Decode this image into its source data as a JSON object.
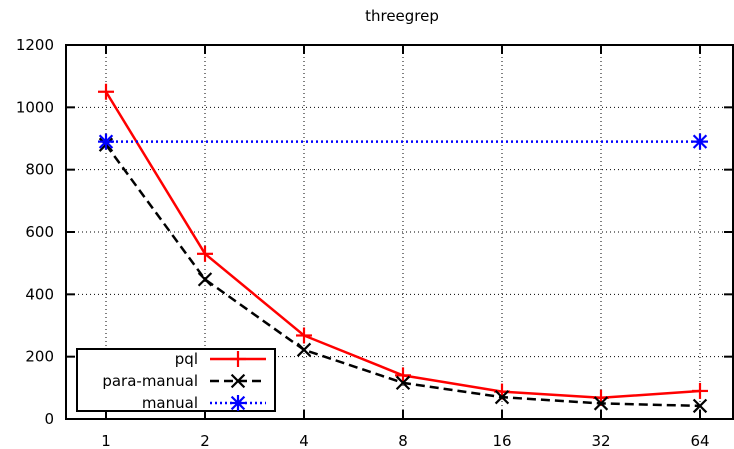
{
  "chart_data": {
    "type": "line",
    "title": "threegrep",
    "xlabel": "",
    "ylabel": "",
    "categories": [
      "1",
      "2",
      "4",
      "8",
      "16",
      "32",
      "64"
    ],
    "ylim": [
      0,
      1200
    ],
    "yticks": [
      0,
      200,
      400,
      600,
      800,
      1000,
      1200
    ],
    "grid": true,
    "legend_position": "bottom-left",
    "series": [
      {
        "name": "pql",
        "color": "#ff0000",
        "dash": "solid",
        "marker": "plus",
        "values": [
          1050,
          530,
          268,
          140,
          88,
          68,
          90
        ]
      },
      {
        "name": "para-manual",
        "color": "#000000",
        "dash": "dashed",
        "marker": "cross",
        "values": [
          880,
          448,
          222,
          116,
          70,
          50,
          42
        ]
      },
      {
        "name": "manual",
        "color": "#0000ff",
        "dash": "dotted",
        "marker": "star",
        "values": [
          890,
          null,
          null,
          null,
          null,
          null,
          890
        ]
      }
    ]
  }
}
